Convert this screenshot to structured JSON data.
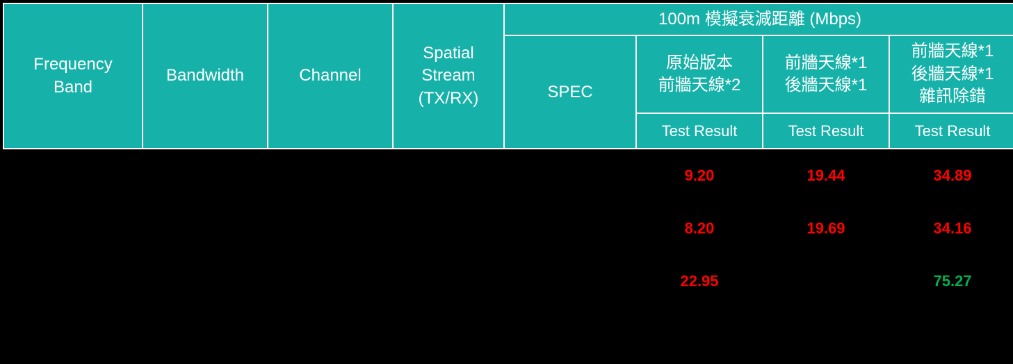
{
  "colors": {
    "header_bg": "#16b1a9",
    "header_fg": "#ffffff",
    "header_border": "#ffffff",
    "body_bg": "#000000",
    "value_red": "#ff0000",
    "value_green": "#00b050"
  },
  "header": {
    "freq": "Frequency\nBand",
    "bw": "Bandwidth",
    "ch": "Channel",
    "ss": "Spatial\nStream\n(TX/RX)",
    "group": "100m 模擬衰減距離 (Mbps)",
    "spec": "SPEC",
    "col1_title": "原始版本\n前牆天線*2",
    "col2_title": "前牆天線*1\n後牆天線*1",
    "col3_title": "前牆天線*1\n後牆天線*1\n雜訊除錯",
    "test_result": "Test Result"
  },
  "rows": [
    {
      "r1": {
        "val": "9.20",
        "cls": "red"
      },
      "r2": {
        "val": "19.44",
        "cls": "red"
      },
      "r3": {
        "val": "34.89",
        "cls": "red"
      }
    },
    {
      "r1": {
        "val": "8.20",
        "cls": "red"
      },
      "r2": {
        "val": "19.69",
        "cls": "red"
      },
      "r3": {
        "val": "34.16",
        "cls": "red"
      }
    },
    {
      "r1": {
        "val": "22.95",
        "cls": "red"
      },
      "r2": {
        "val": "",
        "cls": ""
      },
      "r3": {
        "val": "75.27",
        "cls": "green"
      }
    }
  ]
}
